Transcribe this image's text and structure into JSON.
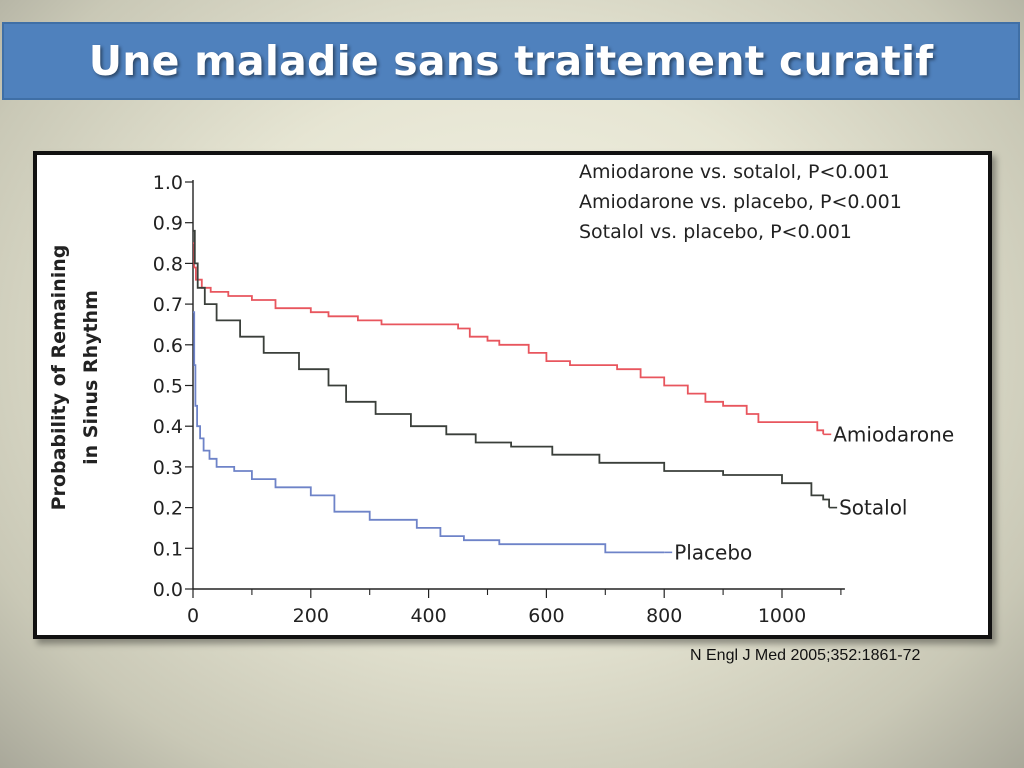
{
  "slide": {
    "title": "Une maladie sans traitement curatif",
    "citation": "N Engl J Med 2005;352:1861-72"
  },
  "chart_data": {
    "type": "line",
    "step": true,
    "ylabel_lines": [
      "Probability of Remaining",
      "in Sinus Rhythm"
    ],
    "xlabel": "",
    "xlim": [
      0,
      1100
    ],
    "ylim": [
      0,
      1.0
    ],
    "x_ticks": [
      "0",
      "200",
      "400",
      "600",
      "800",
      "1000"
    ],
    "y_ticks": [
      "0.0",
      "0.1",
      "0.2",
      "0.3",
      "0.4",
      "0.5",
      "0.6",
      "0.7",
      "0.8",
      "0.9",
      "1.0"
    ],
    "annotations": [
      "Amiodarone vs. sotalol, P<0.001",
      "Amiodarone vs. placebo, P<0.001",
      "Sotalol vs. placebo, P<0.001"
    ],
    "grid": false,
    "series": [
      {
        "name": "Amiodarone",
        "color": "#e8565e",
        "points": [
          [
            0,
            0.85
          ],
          [
            2,
            0.79
          ],
          [
            5,
            0.76
          ],
          [
            15,
            0.74
          ],
          [
            30,
            0.73
          ],
          [
            60,
            0.72
          ],
          [
            100,
            0.71
          ],
          [
            140,
            0.69
          ],
          [
            200,
            0.68
          ],
          [
            230,
            0.67
          ],
          [
            280,
            0.66
          ],
          [
            320,
            0.65
          ],
          [
            450,
            0.64
          ],
          [
            470,
            0.62
          ],
          [
            500,
            0.61
          ],
          [
            520,
            0.6
          ],
          [
            570,
            0.58
          ],
          [
            600,
            0.56
          ],
          [
            640,
            0.55
          ],
          [
            720,
            0.54
          ],
          [
            760,
            0.52
          ],
          [
            800,
            0.5
          ],
          [
            840,
            0.48
          ],
          [
            870,
            0.46
          ],
          [
            900,
            0.45
          ],
          [
            940,
            0.43
          ],
          [
            960,
            0.41
          ],
          [
            1060,
            0.39
          ],
          [
            1070,
            0.38
          ]
        ]
      },
      {
        "name": "Sotalol",
        "color": "#3a3f3a",
        "points": [
          [
            0,
            0.88
          ],
          [
            3,
            0.8
          ],
          [
            8,
            0.74
          ],
          [
            20,
            0.7
          ],
          [
            40,
            0.66
          ],
          [
            80,
            0.62
          ],
          [
            120,
            0.58
          ],
          [
            180,
            0.54
          ],
          [
            230,
            0.5
          ],
          [
            260,
            0.46
          ],
          [
            310,
            0.43
          ],
          [
            370,
            0.4
          ],
          [
            430,
            0.38
          ],
          [
            480,
            0.36
          ],
          [
            540,
            0.35
          ],
          [
            610,
            0.33
          ],
          [
            690,
            0.31
          ],
          [
            800,
            0.29
          ],
          [
            900,
            0.28
          ],
          [
            1000,
            0.26
          ],
          [
            1050,
            0.23
          ],
          [
            1070,
            0.22
          ],
          [
            1080,
            0.2
          ]
        ]
      },
      {
        "name": "Placebo",
        "color": "#6e83c8",
        "points": [
          [
            0,
            0.68
          ],
          [
            2,
            0.55
          ],
          [
            4,
            0.45
          ],
          [
            7,
            0.4
          ],
          [
            12,
            0.37
          ],
          [
            18,
            0.34
          ],
          [
            28,
            0.32
          ],
          [
            40,
            0.3
          ],
          [
            70,
            0.29
          ],
          [
            100,
            0.27
          ],
          [
            140,
            0.25
          ],
          [
            200,
            0.23
          ],
          [
            240,
            0.19
          ],
          [
            300,
            0.17
          ],
          [
            380,
            0.15
          ],
          [
            420,
            0.13
          ],
          [
            460,
            0.12
          ],
          [
            520,
            0.11
          ],
          [
            700,
            0.09
          ],
          [
            800,
            0.09
          ]
        ]
      }
    ],
    "series_labels": [
      "Amiodarone",
      "Sotalol",
      "Placebo"
    ]
  }
}
